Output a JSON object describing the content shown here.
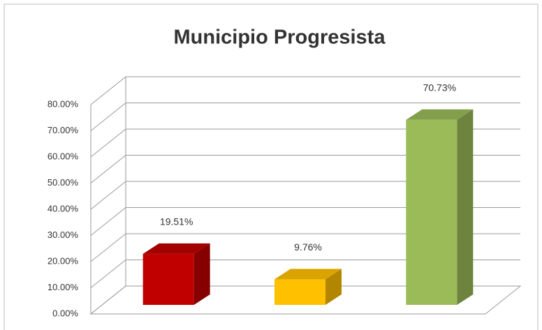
{
  "chart_data": {
    "type": "bar3d",
    "title": "Municipio Progresista",
    "categories": [
      null,
      null,
      null
    ],
    "series": [
      {
        "values": [
          19.51,
          9.76,
          70.73
        ],
        "value_labels": [
          "19.51%",
          "9.76%",
          "70.73%"
        ],
        "colors": [
          "#c00000",
          "#ffc000",
          "#9bbb59"
        ]
      }
    ],
    "ylim": [
      0,
      80
    ],
    "yticks": [
      {
        "value": 0,
        "label": "0.00%"
      },
      {
        "value": 10,
        "label": "10.00%"
      },
      {
        "value": 20,
        "label": "20.00%"
      },
      {
        "value": 30,
        "label": "30.00%"
      },
      {
        "value": 40,
        "label": "40.00%"
      },
      {
        "value": 50,
        "label": "50.00%"
      },
      {
        "value": 60,
        "label": "60.00%"
      },
      {
        "value": 70,
        "label": "70.00%"
      },
      {
        "value": 80,
        "label": "80.00%"
      }
    ],
    "grid": true
  }
}
